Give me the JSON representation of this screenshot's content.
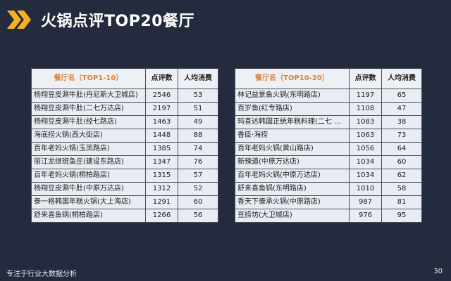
{
  "title": "火锅点评TOP20餐厅",
  "accent_color": "#f5b21e",
  "header_icon": "double-chevron-right-icon",
  "left_table": {
    "headers": [
      "餐厅名（TOP1-10）",
      "点评数",
      "人均消费"
    ],
    "rows": [
      [
        "杨翔豆皮涮牛肚(丹尼斯大卫城店)",
        "2546",
        "53"
      ],
      [
        "杨翔豆皮涮牛肚(二七万达店)",
        "2197",
        "51"
      ],
      [
        "杨翔豆皮涮牛肚(经七路店)",
        "1463",
        "49"
      ],
      [
        "海底捞火锅(西大街店)",
        "1448",
        "88"
      ],
      [
        "百年老妈火锅(玉凤路店)",
        "1385",
        "74"
      ],
      [
        "丽江龙继斑鱼庄(建设东路店)",
        "1347",
        "76"
      ],
      [
        "百年老妈火锅(桐柏路店)",
        "1315",
        "57"
      ],
      [
        "杨翔豆皮涮牛肚(中原万达店)",
        "1312",
        "52"
      ],
      [
        "泰一格韩国年糕火锅(大上海店)",
        "1291",
        "60"
      ],
      [
        "舒来喜鱼锅(桐柏路店)",
        "1266",
        "56"
      ]
    ]
  },
  "right_table": {
    "headers": [
      "餐厅名（TOP10-20）",
      "点评数",
      "人均消费"
    ],
    "rows": [
      [
        "林记益景鱼火锅(东明路店)",
        "1197",
        "65"
      ],
      [
        "百岁鱼(红专路店)",
        "1108",
        "47"
      ],
      [
        "玛喜达韩国正统年糕料理(二七 ...",
        "1083",
        "38"
      ],
      [
        "香臣·海捞",
        "1063",
        "73"
      ],
      [
        "百年老妈火锅(黄山路店)",
        "1056",
        "64"
      ],
      [
        "新辣道(中原万达店)",
        "1034",
        "60"
      ],
      [
        "百年老妈火锅(中原万达店)",
        "1034",
        "62"
      ],
      [
        "舒来喜鱼锅(东明路店)",
        "1010",
        "58"
      ],
      [
        "香天下傣承火锅(中原路店)",
        "987",
        "81"
      ],
      [
        "豆捞坊(大卫城店)",
        "976",
        "95"
      ]
    ]
  },
  "footer": {
    "tagline": "专注于行业大数据分析",
    "page_number": "30"
  }
}
